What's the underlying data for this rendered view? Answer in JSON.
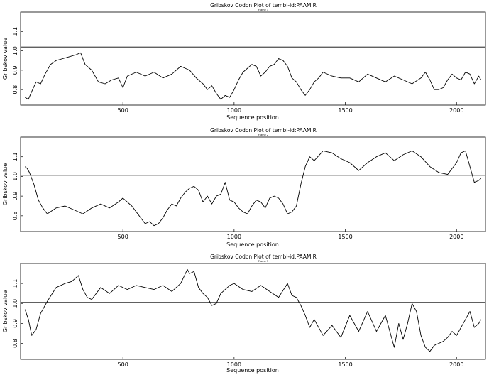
{
  "chart_data": [
    {
      "type": "line",
      "title": "Gribskov Codon Plot of tembl-id:PAAMIR",
      "subtitle": "Frame 1",
      "xlabel": "Sequence position",
      "ylabel": "Gribskov value",
      "xlim": [
        40,
        2130
      ],
      "ylim": [
        0.72,
        1.2
      ],
      "xticks": [
        500,
        1000,
        1500,
        2000
      ],
      "xtick_labels": [
        "500",
        "1000",
        "1500",
        "2000"
      ],
      "yticks": [
        0.8,
        0.9,
        1.0,
        1.1
      ],
      "ytick_labels": [
        "0.8",
        "0.9",
        "1.0",
        "1.1"
      ],
      "reference_line": 1.0,
      "x": [
        60,
        75,
        90,
        110,
        130,
        150,
        175,
        200,
        230,
        260,
        290,
        310,
        330,
        360,
        390,
        420,
        450,
        480,
        500,
        520,
        560,
        600,
        640,
        680,
        720,
        760,
        800,
        830,
        860,
        880,
        900,
        920,
        940,
        960,
        980,
        1000,
        1020,
        1040,
        1060,
        1080,
        1100,
        1120,
        1140,
        1160,
        1180,
        1200,
        1220,
        1240,
        1260,
        1280,
        1300,
        1320,
        1340,
        1360,
        1380,
        1400,
        1440,
        1480,
        1520,
        1560,
        1600,
        1640,
        1680,
        1720,
        1760,
        1800,
        1840,
        1860,
        1880,
        1900,
        1920,
        1940,
        1960,
        1980,
        2000,
        2020,
        2040,
        2060,
        2080,
        2100,
        2110
      ],
      "y": [
        0.76,
        0.75,
        0.79,
        0.84,
        0.83,
        0.88,
        0.93,
        0.95,
        0.96,
        0.97,
        0.98,
        0.99,
        0.93,
        0.9,
        0.84,
        0.83,
        0.85,
        0.86,
        0.81,
        0.87,
        0.89,
        0.87,
        0.89,
        0.86,
        0.88,
        0.92,
        0.9,
        0.86,
        0.83,
        0.8,
        0.82,
        0.78,
        0.75,
        0.77,
        0.76,
        0.8,
        0.85,
        0.89,
        0.91,
        0.93,
        0.92,
        0.87,
        0.89,
        0.92,
        0.93,
        0.96,
        0.95,
        0.92,
        0.86,
        0.84,
        0.8,
        0.77,
        0.8,
        0.84,
        0.86,
        0.89,
        0.87,
        0.86,
        0.86,
        0.84,
        0.88,
        0.86,
        0.84,
        0.87,
        0.85,
        0.83,
        0.86,
        0.89,
        0.85,
        0.8,
        0.8,
        0.81,
        0.85,
        0.88,
        0.86,
        0.85,
        0.89,
        0.88,
        0.83,
        0.87,
        0.85
      ]
    },
    {
      "type": "line",
      "title": "Gribskov Codon Plot of tembl-id:PAAMIR",
      "subtitle": "Frame 2",
      "xlabel": "Sequence position",
      "ylabel": "Gribskov value",
      "xlim": [
        40,
        2130
      ],
      "ylim": [
        0.72,
        1.2
      ],
      "xticks": [
        500,
        1000,
        1500,
        2000
      ],
      "xtick_labels": [
        "500",
        "1000",
        "1500",
        "2000"
      ],
      "yticks": [
        0.8,
        0.9,
        1.0,
        1.1
      ],
      "ytick_labels": [
        "0.8",
        "0.9",
        "1.0",
        "1.1"
      ],
      "reference_line": 1.0,
      "x": [
        60,
        70,
        80,
        100,
        120,
        140,
        160,
        200,
        240,
        280,
        320,
        360,
        400,
        440,
        480,
        500,
        540,
        560,
        580,
        600,
        620,
        640,
        660,
        680,
        700,
        720,
        740,
        760,
        780,
        800,
        820,
        840,
        860,
        880,
        900,
        920,
        940,
        960,
        980,
        1000,
        1020,
        1040,
        1060,
        1080,
        1100,
        1120,
        1140,
        1160,
        1180,
        1200,
        1220,
        1240,
        1260,
        1280,
        1300,
        1320,
        1340,
        1360,
        1400,
        1440,
        1480,
        1520,
        1560,
        1600,
        1640,
        1680,
        1720,
        1760,
        1800,
        1840,
        1880,
        1920,
        1960,
        2000,
        2020,
        2040,
        2060,
        2080,
        2100,
        2110
      ],
      "y": [
        1.05,
        1.04,
        1.02,
        0.96,
        0.88,
        0.84,
        0.81,
        0.84,
        0.85,
        0.83,
        0.81,
        0.84,
        0.86,
        0.84,
        0.87,
        0.89,
        0.85,
        0.82,
        0.79,
        0.76,
        0.77,
        0.75,
        0.76,
        0.79,
        0.83,
        0.86,
        0.85,
        0.89,
        0.92,
        0.94,
        0.95,
        0.93,
        0.87,
        0.9,
        0.86,
        0.9,
        0.91,
        0.97,
        0.88,
        0.87,
        0.84,
        0.82,
        0.81,
        0.85,
        0.88,
        0.87,
        0.84,
        0.89,
        0.9,
        0.89,
        0.86,
        0.81,
        0.82,
        0.85,
        0.96,
        1.05,
        1.1,
        1.08,
        1.13,
        1.12,
        1.09,
        1.07,
        1.03,
        1.07,
        1.1,
        1.12,
        1.08,
        1.11,
        1.13,
        1.1,
        1.05,
        1.02,
        1.01,
        1.07,
        1.12,
        1.13,
        1.05,
        0.97,
        0.98,
        0.99
      ]
    },
    {
      "type": "line",
      "title": "Gribskov Codon Plot of tembl-id:PAAMIR",
      "subtitle": "Frame 3",
      "xlabel": "Sequence position",
      "ylabel": "Gribskov value",
      "xlim": [
        40,
        2130
      ],
      "ylim": [
        0.72,
        1.2
      ],
      "xticks": [
        500,
        1000,
        1500,
        2000
      ],
      "xtick_labels": [
        "500",
        "1000",
        "1500",
        "2000"
      ],
      "yticks": [
        0.8,
        0.9,
        1.0,
        1.1
      ],
      "ytick_labels": [
        "0.8",
        "0.9",
        "1.0",
        "1.1"
      ],
      "reference_line": 1.0,
      "x": [
        60,
        75,
        90,
        110,
        130,
        160,
        200,
        240,
        270,
        300,
        320,
        340,
        360,
        400,
        440,
        480,
        520,
        560,
        600,
        640,
        680,
        720,
        760,
        790,
        800,
        820,
        840,
        860,
        880,
        900,
        920,
        940,
        980,
        1000,
        1040,
        1080,
        1120,
        1160,
        1200,
        1240,
        1260,
        1280,
        1300,
        1320,
        1340,
        1360,
        1400,
        1440,
        1480,
        1520,
        1560,
        1600,
        1640,
        1680,
        1720,
        1740,
        1760,
        1780,
        1800,
        1820,
        1840,
        1860,
        1880,
        1900,
        1920,
        1940,
        1960,
        1980,
        2000,
        2040,
        2060,
        2080,
        2100,
        2110
      ],
      "y": [
        0.97,
        0.92,
        0.84,
        0.87,
        0.95,
        1.01,
        1.08,
        1.1,
        1.11,
        1.14,
        1.07,
        1.03,
        1.02,
        1.08,
        1.05,
        1.09,
        1.07,
        1.09,
        1.08,
        1.07,
        1.09,
        1.06,
        1.1,
        1.17,
        1.15,
        1.16,
        1.08,
        1.05,
        1.03,
        0.99,
        1.0,
        1.05,
        1.09,
        1.1,
        1.07,
        1.06,
        1.09,
        1.06,
        1.03,
        1.1,
        1.04,
        1.03,
        0.99,
        0.94,
        0.88,
        0.92,
        0.84,
        0.89,
        0.83,
        0.94,
        0.86,
        0.96,
        0.86,
        0.94,
        0.78,
        0.9,
        0.82,
        0.9,
        1.0,
        0.96,
        0.84,
        0.78,
        0.76,
        0.79,
        0.8,
        0.81,
        0.83,
        0.86,
        0.84,
        0.92,
        0.96,
        0.88,
        0.9,
        0.92
      ]
    }
  ]
}
